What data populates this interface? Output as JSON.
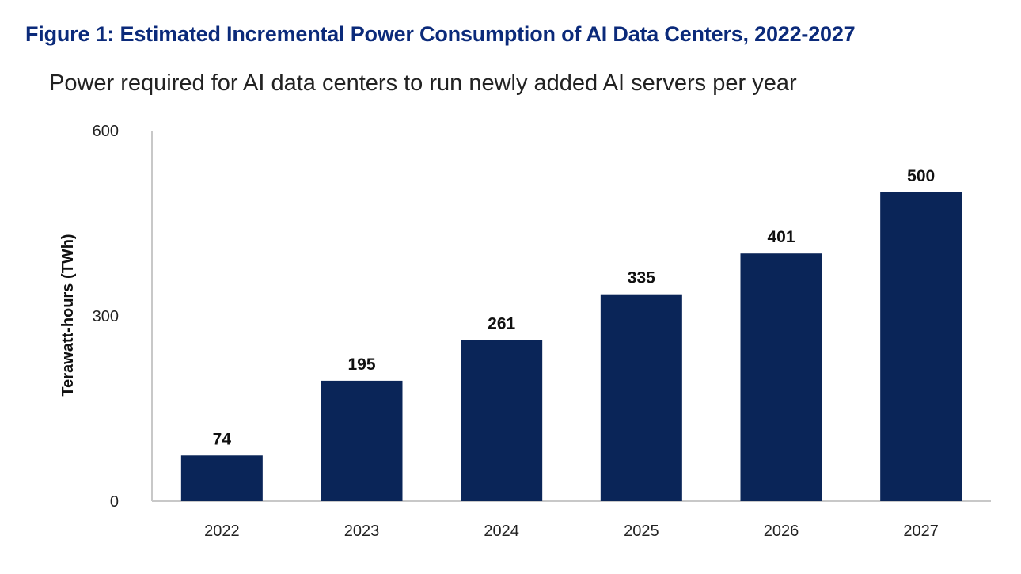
{
  "header": {
    "title": "Figure 1: Estimated Incremental Power Consumption of AI Data Centers, 2022-2027",
    "subtitle": "Power required for AI data centers to run newly added AI servers per year"
  },
  "colors": {
    "title": "#0b2a7a",
    "bar": "#0a2558",
    "axis": "#c8c8c8"
  },
  "chart_data": {
    "type": "bar",
    "title": "Figure 1: Estimated Incremental Power Consumption of AI Data Centers, 2022-2027",
    "subtitle": "Power required for AI data centers to run newly added AI servers per year",
    "xlabel": "",
    "ylabel": "Terawatt-hours (TWh)",
    "categories": [
      "2022",
      "2023",
      "2024",
      "2025",
      "2026",
      "2027"
    ],
    "values": [
      74,
      195,
      261,
      335,
      401,
      500
    ],
    "data_labels": [
      "74",
      "195",
      "261",
      "335",
      "401",
      "500"
    ],
    "yticks": [
      "0",
      "300",
      "600"
    ],
    "ytick_values": [
      0,
      300,
      600
    ],
    "ylim": [
      0,
      600
    ],
    "grid": false,
    "legend": "none"
  }
}
